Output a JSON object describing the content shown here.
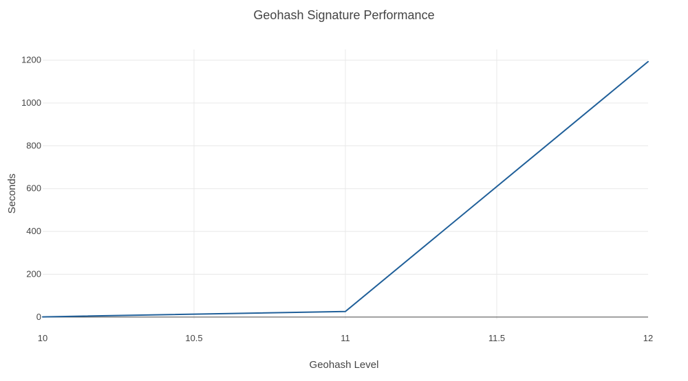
{
  "chart_data": {
    "type": "line",
    "title": "Geohash Signature Performance",
    "xlabel": "Geohash Level",
    "ylabel": "Seconds",
    "x": [
      10,
      11,
      12
    ],
    "series": [
      {
        "values": [
          1,
          26,
          1193
        ]
      }
    ],
    "xlim": [
      10,
      12
    ],
    "ylim": [
      -10,
      1250
    ],
    "x_ticks": [
      10,
      10.5,
      11,
      11.5,
      12
    ],
    "x_tick_labels": [
      "10",
      "10.5",
      "11",
      "11.5",
      "12"
    ],
    "y_ticks": [
      0,
      200,
      400,
      600,
      800,
      1000,
      1200
    ],
    "y_tick_labels": [
      "0",
      "200",
      "400",
      "600",
      "800",
      "1000",
      "1200"
    ],
    "grid": true,
    "legend": "none",
    "line_color": "#1f5f99"
  }
}
